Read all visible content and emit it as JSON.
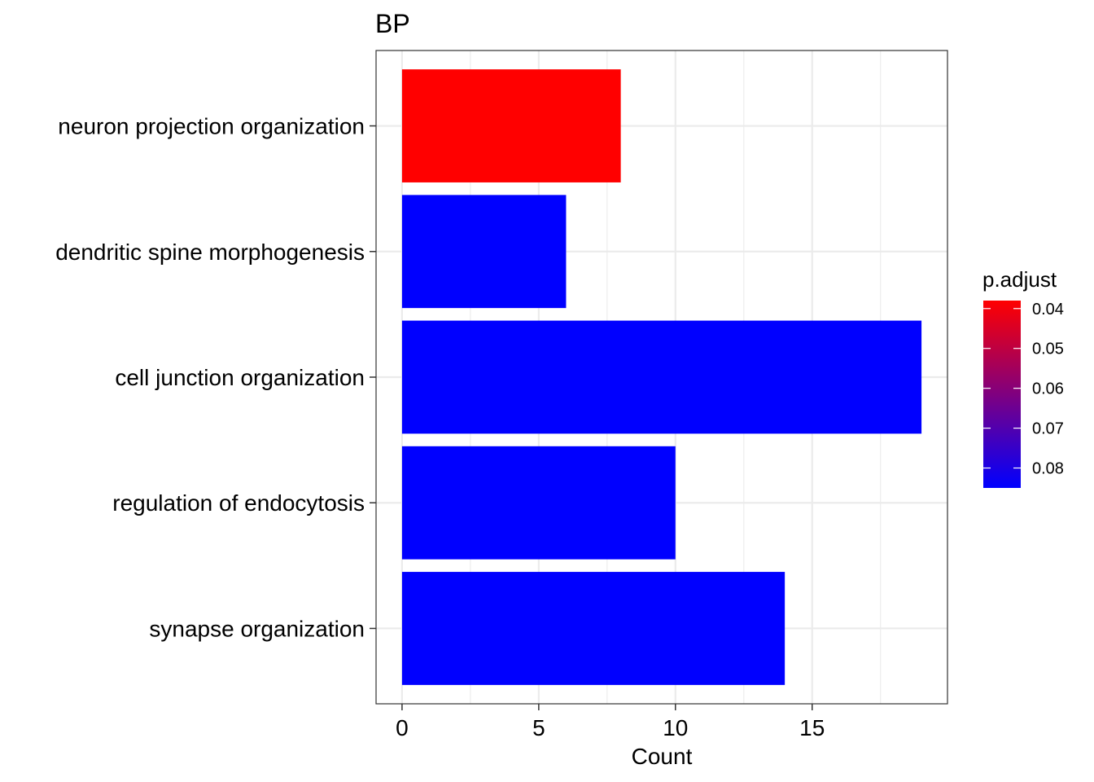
{
  "chart_data": {
    "type": "bar",
    "orientation": "horizontal",
    "title": "BP",
    "xlabel": "Count",
    "ylabel": "",
    "categories": [
      "neuron projection organization",
      "dendritic spine morphogenesis",
      "cell junction organization",
      "regulation of endocytosis",
      "synapse organization"
    ],
    "values": [
      8,
      6,
      19,
      10,
      14
    ],
    "p_adjust": [
      0.038,
      0.085,
      0.085,
      0.085,
      0.085
    ],
    "xlim": [
      -0.95,
      19.95
    ],
    "xticks": [
      0,
      5,
      10,
      15
    ],
    "xtick_labels": [
      "0",
      "5",
      "10",
      "15"
    ],
    "grid": true,
    "legend": {
      "title": "p.adjust",
      "placement": "right",
      "type": "colorbar",
      "range": [
        0.038,
        0.085
      ],
      "ticks": [
        0.04,
        0.05,
        0.06,
        0.07,
        0.08
      ],
      "tick_labels": [
        "0.04",
        "0.05",
        "0.06",
        "0.07",
        "0.08"
      ],
      "low_color": "#ff0000",
      "high_color": "#0000ff"
    }
  }
}
